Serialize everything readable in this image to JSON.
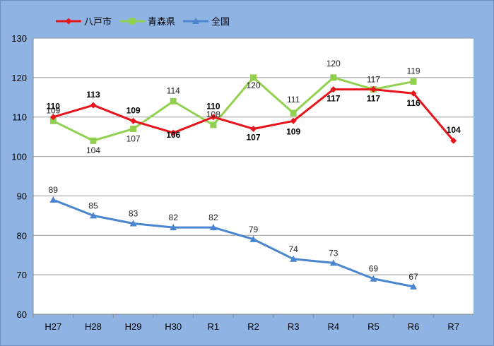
{
  "chart_data": {
    "type": "line",
    "categories": [
      "H27",
      "H28",
      "H29",
      "H30",
      "R1",
      "R2",
      "R3",
      "R4",
      "R5",
      "R6",
      "R7"
    ],
    "series": [
      {
        "name": "八戸市",
        "color": "#e8141b",
        "marker": "diamond",
        "values": [
          110,
          113,
          109,
          106,
          110,
          107,
          109,
          117,
          117,
          116,
          104
        ],
        "label_weight": "bold"
      },
      {
        "name": "青森県",
        "color": "#92d050",
        "marker": "square",
        "values": [
          109,
          104,
          107,
          114,
          108,
          120,
          111,
          120,
          117,
          119,
          null
        ],
        "label_weight": "normal"
      },
      {
        "name": "全国",
        "color": "#4a86cf",
        "marker": "triangle",
        "values": [
          89,
          85,
          83,
          82,
          82,
          79,
          74,
          73,
          69,
          67,
          null
        ],
        "label_weight": "normal"
      }
    ],
    "ylim": [
      60,
      130
    ],
    "yticks": [
      60,
      70,
      80,
      90,
      100,
      110,
      120,
      130
    ],
    "grid": true,
    "legend": "top-left",
    "title": "",
    "xlabel": "",
    "ylabel": ""
  }
}
